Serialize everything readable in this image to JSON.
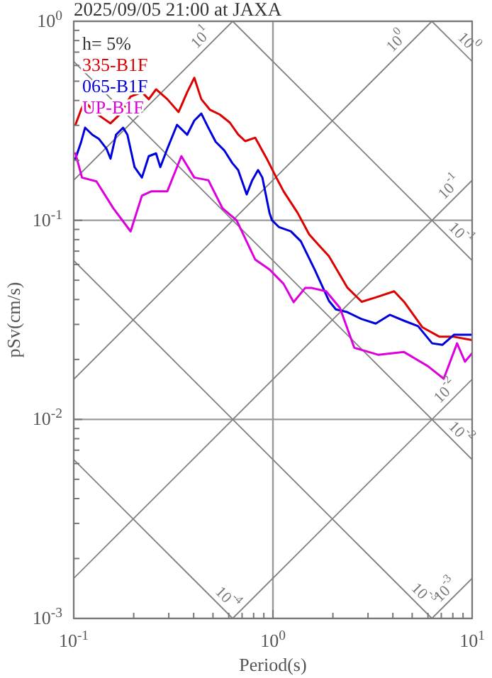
{
  "chart_data": {
    "type": "line",
    "title": "2025/09/05 21:00 at JAXA",
    "xlabel": "Period(s)",
    "ylabel": "pSv(cm/s)",
    "log": "xy",
    "grid": true,
    "legend": "top left",
    "xlim": [
      0.1,
      10
    ],
    "ylim": [
      0.001,
      1
    ],
    "xticks": [
      {
        "value": 0.1,
        "label": "10$^{-1}$"
      },
      {
        "value": 0.2,
        "label": null
      },
      {
        "value": 0.3,
        "label": null
      },
      {
        "value": 0.4,
        "label": null
      },
      {
        "value": 0.5,
        "label": null
      },
      {
        "value": 0.6,
        "label": null
      },
      {
        "value": 0.7,
        "label": null
      },
      {
        "value": 0.8,
        "label": null
      },
      {
        "value": 0.9,
        "label": null
      },
      {
        "value": 1,
        "label": "10$^{0}$"
      },
      {
        "value": 2,
        "label": null
      },
      {
        "value": 3,
        "label": null
      },
      {
        "value": 4,
        "label": null
      },
      {
        "value": 5,
        "label": null
      },
      {
        "value": 6,
        "label": null
      },
      {
        "value": 7,
        "label": null
      },
      {
        "value": 8,
        "label": null
      },
      {
        "value": 9,
        "label": null
      },
      {
        "value": 10,
        "label": "10$^{1}$"
      }
    ],
    "yticks": [
      {
        "value": 0.001,
        "label": "10$^{-3}$"
      },
      {
        "value": 0.002,
        "label": null
      },
      {
        "value": 0.003,
        "label": null
      },
      {
        "value": 0.004,
        "label": null
      },
      {
        "value": 0.005,
        "label": null
      },
      {
        "value": 0.006,
        "label": null
      },
      {
        "value": 0.007,
        "label": null
      },
      {
        "value": 0.008,
        "label": null
      },
      {
        "value": 0.009,
        "label": null
      },
      {
        "value": 0.01,
        "label": "10$^{-2}$"
      },
      {
        "value": 0.02,
        "label": null
      },
      {
        "value": 0.03,
        "label": null
      },
      {
        "value": 0.04,
        "label": null
      },
      {
        "value": 0.05,
        "label": null
      },
      {
        "value": 0.06,
        "label": null
      },
      {
        "value": 0.07,
        "label": null
      },
      {
        "value": 0.08,
        "label": null
      },
      {
        "value": 0.09,
        "label": null
      },
      {
        "value": 0.1,
        "label": "10$^{-1}$"
      },
      {
        "value": 0.2,
        "label": null
      },
      {
        "value": 0.3,
        "label": null
      },
      {
        "value": 0.4,
        "label": null
      },
      {
        "value": 0.5,
        "label": null
      },
      {
        "value": 0.6,
        "label": null
      },
      {
        "value": 0.7,
        "label": null
      },
      {
        "value": 0.8,
        "label": null
      },
      {
        "value": 0.9,
        "label": null
      },
      {
        "value": 1,
        "label": "10$^{0}$"
      }
    ],
    "annotations": [
      "h= 5%",
      {
        "text": "10$^{1}$",
        "x": 0.475,
        "y": 0.756
      },
      {
        "text": "10$^{0}$",
        "x": 4.55,
        "y": 0.725
      },
      {
        "text": "10$^{-1}$",
        "x": 8.4,
        "y": 0.134
      },
      {
        "text": "10$^{-2}$",
        "x": 8,
        "y": 0.0127
      },
      {
        "text": "10$^{-3}$",
        "x": 8,
        "y": 0.00127
      },
      {
        "text": "10$^{0}$",
        "x": 8.75,
        "y": 0.718
      },
      {
        "text": "10$^{-1}$",
        "x": 8,
        "y": 0.0785
      },
      {
        "text": "10$^{-2}$",
        "x": 8,
        "y": 0.00785
      },
      {
        "text": "10$^{-3}$",
        "x": 5.2,
        "y": 0.00121
      },
      {
        "text": "10$^{-4}$",
        "x": 0.54,
        "y": 0.00116
      }
    ],
    "series": [
      {
        "color": "#808080",
        "x": [
          0.1,
          0.628
        ],
        "values": [
          0.159,
          1
        ]
      },
      {
        "color": "#808080",
        "x": [
          0.1,
          6.28
        ],
        "values": [
          0.0159,
          1
        ]
      },
      {
        "color": "#808080",
        "x": [
          0.1,
          10
        ],
        "values": [
          0.00159,
          0.159
        ]
      },
      {
        "color": "#808080",
        "x": [
          0.628,
          10
        ],
        "values": [
          0.001,
          0.0159
        ]
      },
      {
        "color": "#808080",
        "x": [
          6.28,
          10
        ],
        "values": [
          0.001,
          0.00159
        ]
      },
      {
        "color": "#808080",
        "x": [
          6.28,
          10
        ],
        "values": [
          1,
          0.628
        ]
      },
      {
        "color": "#808080",
        "x": [
          0.628,
          10
        ],
        "values": [
          1,
          0.0628
        ]
      },
      {
        "color": "#808080",
        "x": [
          0.1,
          10
        ],
        "values": [
          0.628,
          0.00628
        ]
      },
      {
        "color": "#808080",
        "x": [
          0.1,
          6.28
        ],
        "values": [
          0.0628,
          0.001
        ]
      },
      {
        "color": "#808080",
        "x": [
          0.1,
          0.628
        ],
        "values": [
          0.00628,
          0.001
        ]
      },
      {
        "name": "335-B1F",
        "color": "#dd0000",
        "x": [
          0.102,
          0.109,
          0.114,
          0.13,
          0.139,
          0.153,
          0.172,
          0.193,
          0.22,
          0.238,
          0.259,
          0.295,
          0.336,
          0.371,
          0.403,
          0.437,
          0.482,
          0.541,
          0.607,
          0.669,
          0.726,
          0.815,
          0.929,
          1.04,
          1.13,
          1.33,
          1.52,
          1.7,
          1.91,
          2.36,
          2.79,
          3.28,
          4.06,
          4.55,
          5.63,
          6.86,
          8.08,
          10
        ],
        "values": [
          0.302,
          0.361,
          0.393,
          0.344,
          0.328,
          0.307,
          0.344,
          0.419,
          0.44,
          0.406,
          0.455,
          0.406,
          0.35,
          0.44,
          0.52,
          0.406,
          0.36,
          0.34,
          0.31,
          0.27,
          0.25,
          0.26,
          0.205,
          0.164,
          0.14,
          0.109,
          0.085,
          0.075,
          0.066,
          0.046,
          0.039,
          0.041,
          0.044,
          0.039,
          0.029,
          0.026,
          0.026,
          0.025
        ]
      },
      {
        "name": "065-B1F",
        "color": "#0000dd",
        "x": [
          0.102,
          0.109,
          0.114,
          0.124,
          0.134,
          0.146,
          0.153,
          0.163,
          0.177,
          0.186,
          0.202,
          0.22,
          0.238,
          0.259,
          0.272,
          0.295,
          0.33,
          0.371,
          0.403,
          0.437,
          0.474,
          0.516,
          0.569,
          0.625,
          0.669,
          0.738,
          0.787,
          0.842,
          0.885,
          0.961,
          0.99,
          1.07,
          1.23,
          1.38,
          1.62,
          1.91,
          2.07,
          2.36,
          2.79,
          3.28,
          3.86,
          4.55,
          5.35,
          6.3,
          7.1,
          8.1,
          10
        ],
        "values": [
          0.204,
          0.248,
          0.292,
          0.269,
          0.256,
          0.229,
          0.204,
          0.269,
          0.292,
          0.269,
          0.185,
          0.164,
          0.21,
          0.217,
          0.185,
          0.229,
          0.302,
          0.269,
          0.317,
          0.344,
          0.292,
          0.248,
          0.225,
          0.194,
          0.179,
          0.135,
          0.159,
          0.179,
          0.164,
          0.109,
          0.1,
          0.0926,
          0.0881,
          0.0785,
          0.0566,
          0.0394,
          0.0357,
          0.0346,
          0.0319,
          0.0303,
          0.0335,
          0.0313,
          0.0294,
          0.0241,
          0.0237,
          0.0266,
          0.0266
        ]
      },
      {
        "name": "UP-B1F",
        "color": "#dd00dd",
        "x": [
          0.102,
          0.11,
          0.13,
          0.158,
          0.193,
          0.22,
          0.246,
          0.295,
          0.347,
          0.403,
          0.474,
          0.558,
          0.657,
          0.815,
          0.961,
          1.13,
          1.27,
          1.45,
          1.57,
          1.85,
          2.17,
          2.56,
          3.39,
          4.55,
          6.0,
          7.2,
          8.4,
          9.2,
          10
        ],
        "values": [
          0.217,
          0.164,
          0.157,
          0.115,
          0.088,
          0.133,
          0.14,
          0.14,
          0.21,
          0.164,
          0.159,
          0.115,
          0.1,
          0.0635,
          0.0566,
          0.048,
          0.0388,
          0.0457,
          0.0457,
          0.044,
          0.0363,
          0.0229,
          0.0211,
          0.0218,
          0.0185,
          0.016,
          0.0241,
          0.0195,
          0.0215
        ]
      }
    ]
  }
}
